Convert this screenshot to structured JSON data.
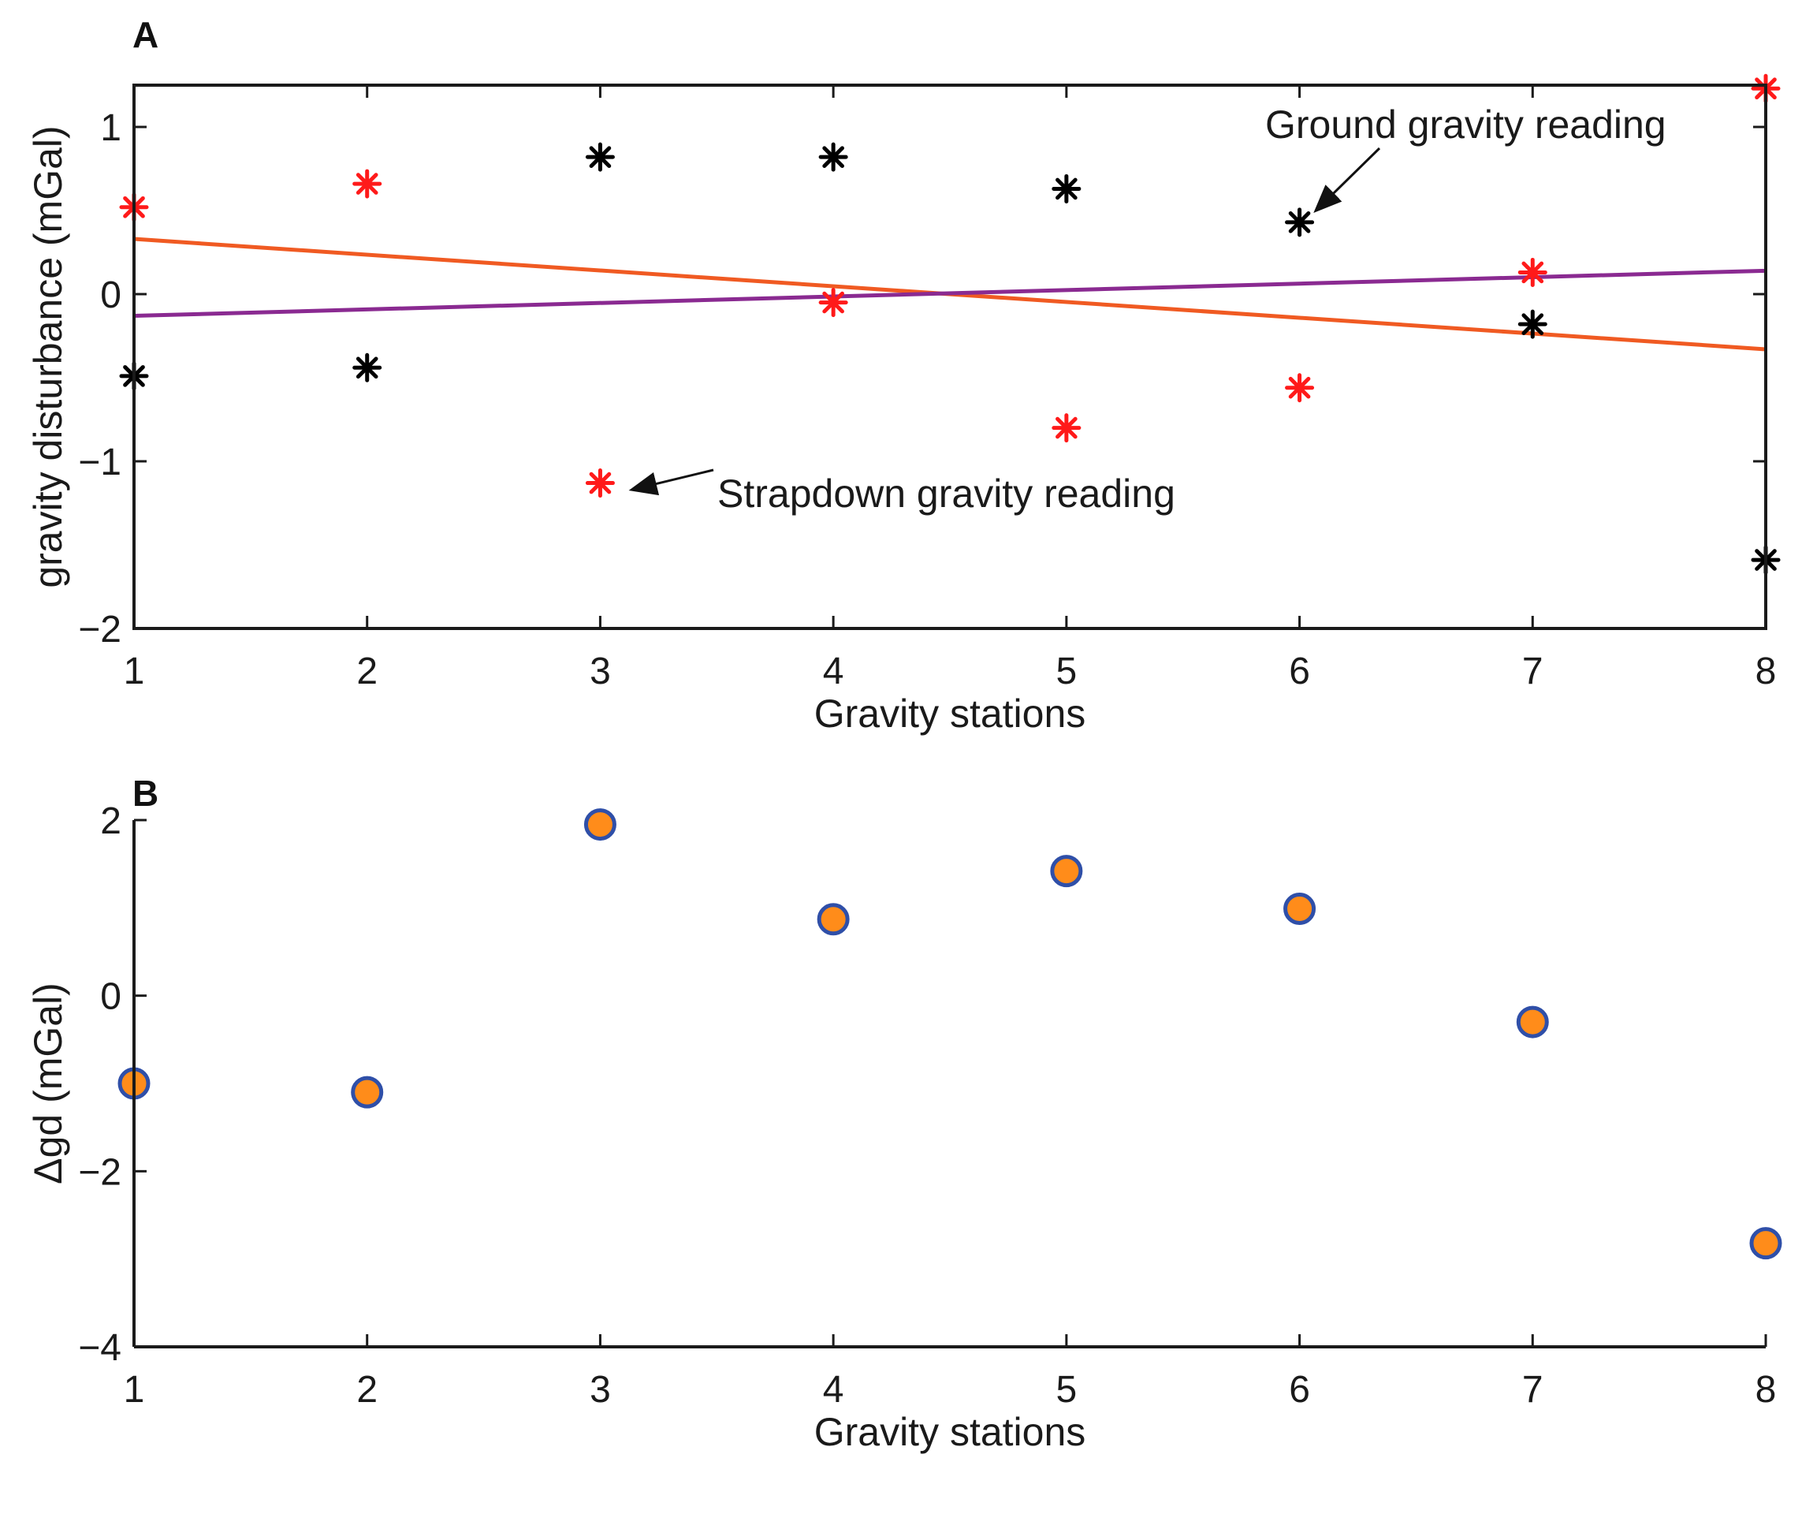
{
  "chart_data": [
    {
      "panel": "A",
      "type": "scatter",
      "xlabel": "Gravity stations",
      "ylabel": "gravity disturbance (mGal)",
      "xlim": [
        1,
        8
      ],
      "ylim": [
        -2,
        1.25
      ],
      "xticks": [
        1,
        2,
        3,
        4,
        5,
        6,
        7,
        8
      ],
      "yticks": [
        -2,
        -1,
        0,
        1
      ],
      "series": [
        {
          "name": "Ground gravity reading",
          "marker": "asterisk",
          "color": "#000000",
          "x": [
            1,
            2,
            3,
            4,
            5,
            6,
            7,
            8
          ],
          "y": [
            -0.49,
            -0.44,
            0.82,
            0.82,
            0.63,
            0.43,
            -0.18,
            -1.59
          ]
        },
        {
          "name": "Strapdown gravity reading",
          "marker": "asterisk",
          "color": "#ff1a1a",
          "x": [
            1,
            2,
            3,
            4,
            5,
            6,
            7,
            8
          ],
          "y": [
            0.52,
            0.66,
            -1.13,
            -0.05,
            -0.8,
            -0.56,
            0.13,
            1.23
          ]
        }
      ],
      "lines": [
        {
          "name": "strapdown-trend",
          "color": "#f05a22",
          "x": [
            1,
            8
          ],
          "y": [
            0.33,
            -0.33
          ]
        },
        {
          "name": "ground-trend",
          "color": "#8a2a91",
          "x": [
            1,
            8
          ],
          "y": [
            -0.13,
            0.14
          ]
        }
      ],
      "annotations": [
        {
          "text": "Ground gravity reading",
          "point": [
            6,
            0.43
          ]
        },
        {
          "text": "Strapdown gravity reading",
          "point": [
            3,
            -1.13
          ]
        }
      ]
    },
    {
      "panel": "B",
      "type": "scatter",
      "xlabel": "Gravity stations",
      "ylabel": "Δgd  (mGal)",
      "xlim": [
        1,
        8
      ],
      "ylim": [
        -4,
        2
      ],
      "xticks": [
        1,
        2,
        3,
        4,
        5,
        6,
        7,
        8
      ],
      "yticks": [
        -4,
        -2,
        0,
        2
      ],
      "series": [
        {
          "name": "Δgd",
          "marker": "circle",
          "color": "#ff8c1a",
          "edge_color": "#2f4fa8",
          "x": [
            1,
            2,
            3,
            4,
            5,
            6,
            7,
            8
          ],
          "y": [
            -1.0,
            -1.1,
            1.95,
            0.87,
            1.42,
            0.99,
            -0.3,
            -2.82
          ]
        }
      ]
    }
  ]
}
